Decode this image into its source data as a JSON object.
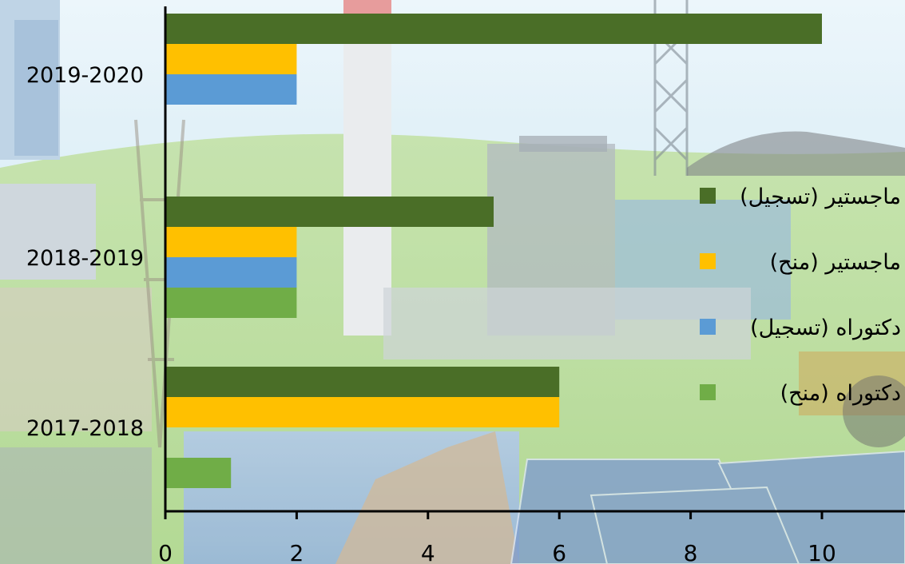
{
  "chart_data": {
    "type": "bar",
    "orientation": "horizontal",
    "categories": [
      "2017-2018",
      "2018-2019",
      "2019-2020"
    ],
    "series": [
      {
        "name": "ماجستير (تسجيل)",
        "color": "#4a6e27",
        "values": [
          6,
          5,
          10
        ]
      },
      {
        "name": "ماجستير (منح)",
        "color": "#ffc000",
        "values": [
          6,
          2,
          2
        ]
      },
      {
        "name": "دكتوراه (تسجيل)",
        "color": "#5b9bd5",
        "values": [
          0,
          2,
          2
        ]
      },
      {
        "name": "دكتوراه (منح)",
        "color": "#70ad47",
        "values": [
          1,
          2,
          0
        ]
      }
    ],
    "xlim": [
      0,
      10
    ],
    "xticks": [
      0,
      2,
      4,
      6,
      8,
      10
    ],
    "title": "",
    "xlabel": "",
    "ylabel": "",
    "legend_position": "right",
    "grid": false
  }
}
